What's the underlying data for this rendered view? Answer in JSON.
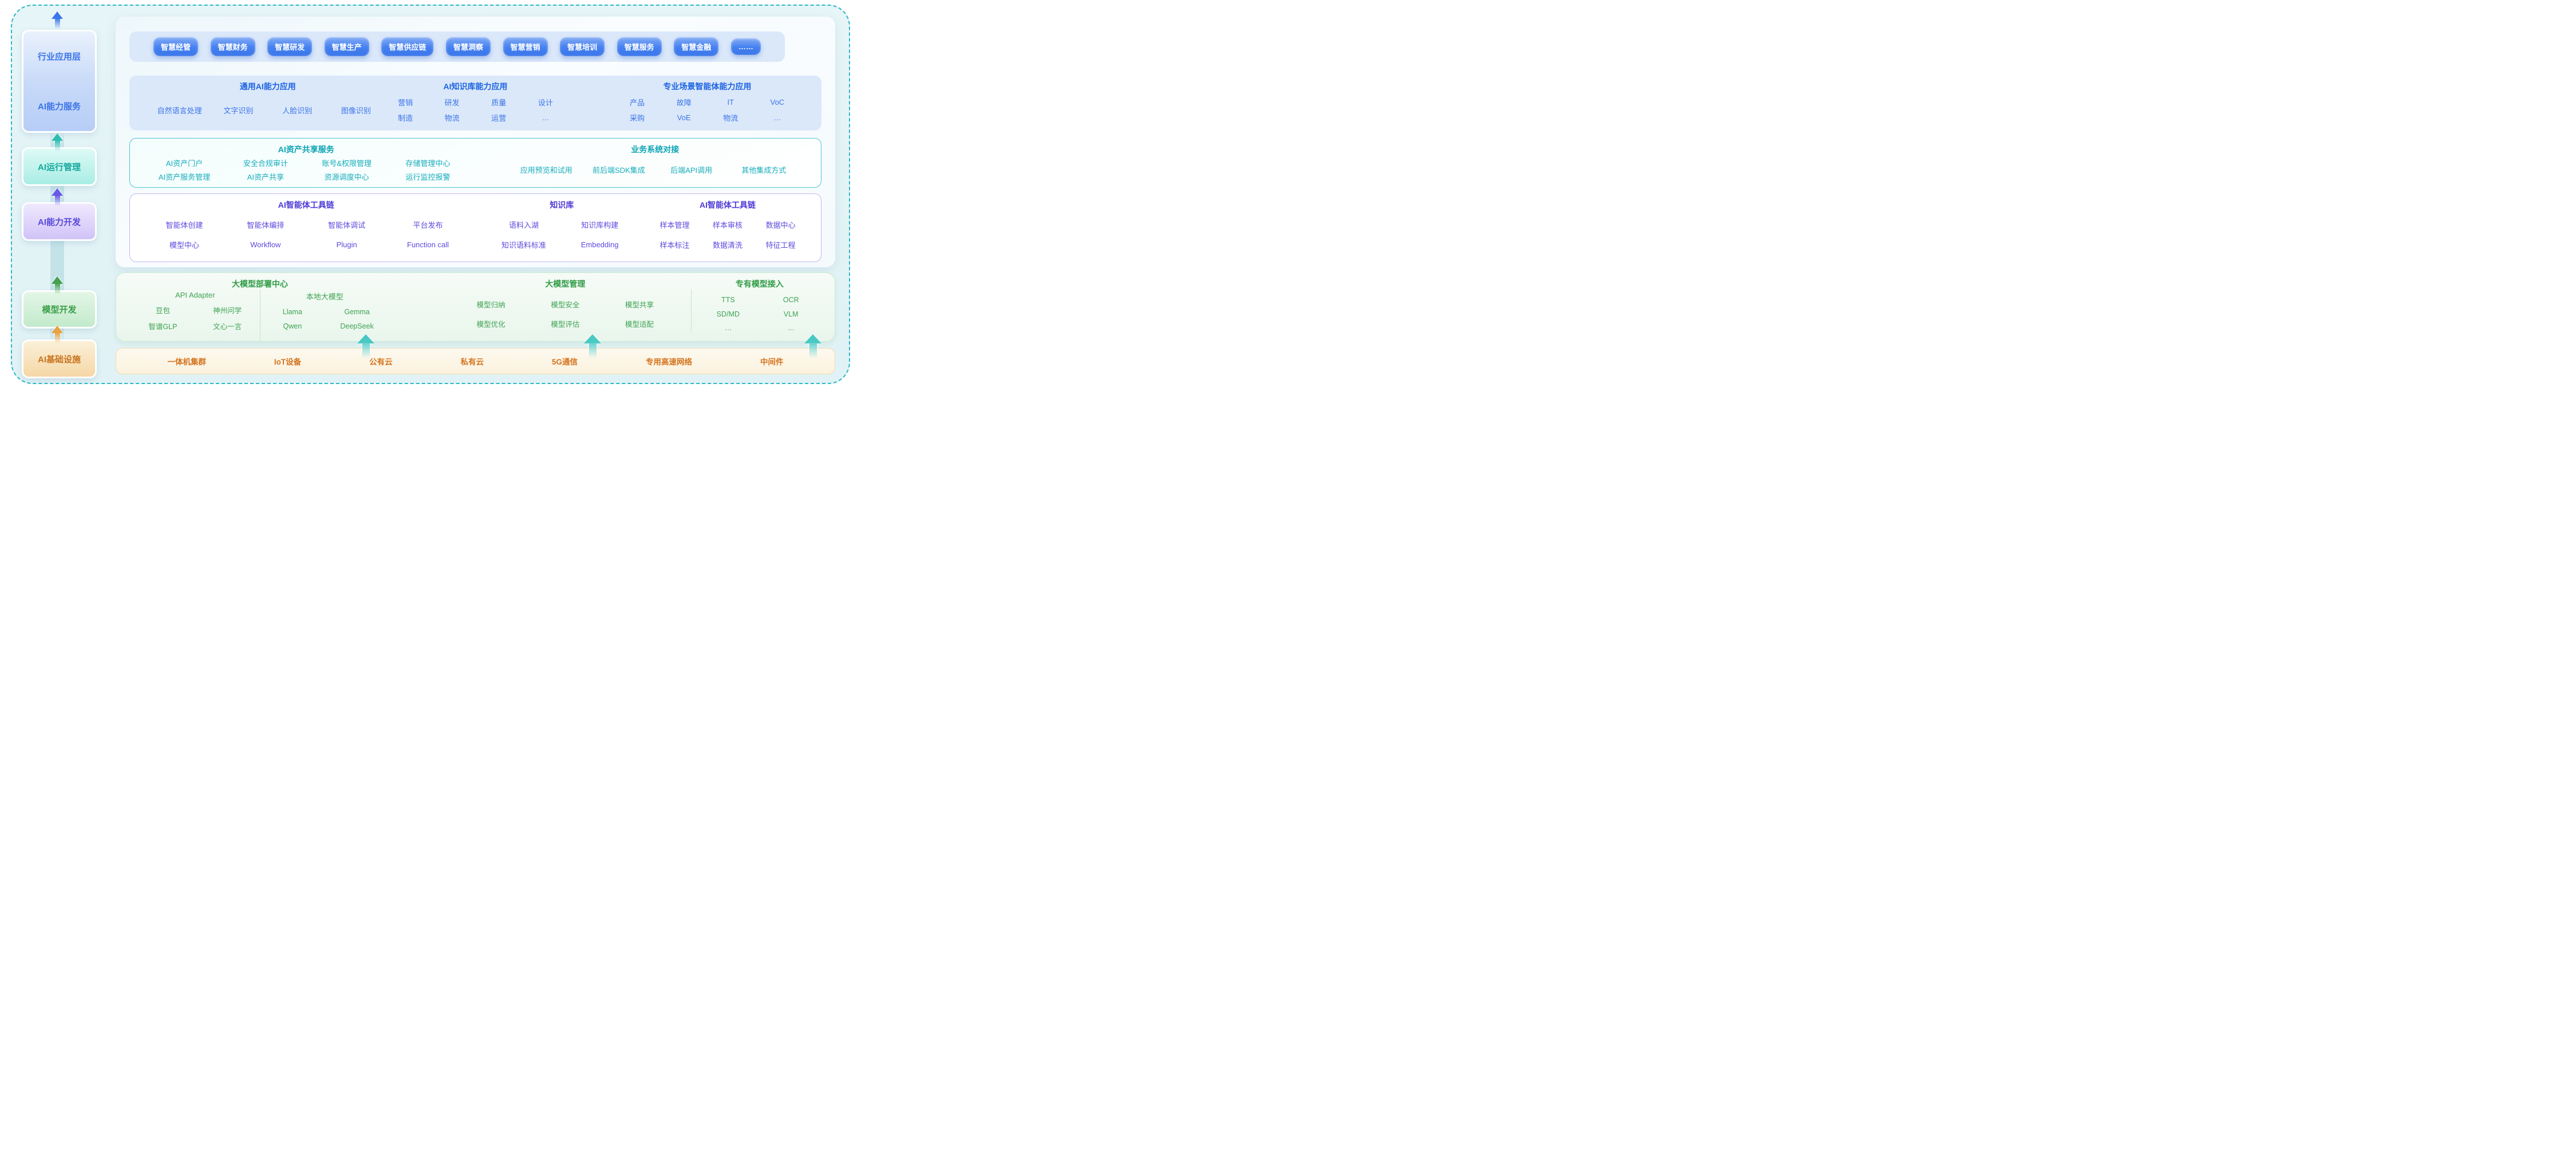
{
  "colors": {
    "board_background": "#e3f3f6",
    "dashed_border": "#2fb7c7",
    "blue_accent": "#3a74e8",
    "teal_accent": "#17acbb",
    "purple_accent": "#5c4ade",
    "green_accent": "#3fa352",
    "orange_accent": "#d4731c",
    "pill_blue": "#3b76ea"
  },
  "sidebar": {
    "layers": [
      {
        "labels": [
          "行业应用层",
          "AI能力服务"
        ]
      },
      {
        "labels": [
          "AI运行管理"
        ]
      },
      {
        "labels": [
          "AI能力开发"
        ]
      },
      {
        "labels": [
          "模型开发"
        ]
      },
      {
        "labels": [
          "AI基础设施"
        ]
      }
    ]
  },
  "apps": {
    "pills": [
      "智慧经管",
      "智慧财务",
      "智慧研发",
      "智慧生产",
      "智慧供应链",
      "智慧洞察",
      "智慧营销",
      "智慧培训",
      "智慧服务",
      "智慧金融",
      "……"
    ]
  },
  "capability": {
    "groups": [
      {
        "title": "通用AI能力应用",
        "rows": [
          [
            "自然语言处理",
            "文字识别",
            "人脸识别",
            "图像识别"
          ]
        ]
      },
      {
        "title": "AI知识库能力应用",
        "rows": [
          [
            "营销",
            "研发",
            "质量",
            "设计"
          ],
          [
            "制造",
            "物流",
            "运营",
            "…"
          ]
        ]
      },
      {
        "title": "专业场景智能体能力应用",
        "rows": [
          [
            "产品",
            "故障",
            "IT",
            "VoC"
          ],
          [
            "采购",
            "VoE",
            "物流",
            "…"
          ]
        ]
      }
    ]
  },
  "runtime": {
    "groups": [
      {
        "title": "AI资产共享服务",
        "rows": [
          [
            "AI资产门户",
            "安全合规审计",
            "账号&权限管理",
            "存储管理中心"
          ],
          [
            "AI资产服务管理",
            "AI资产共享",
            "资源调度中心",
            "运行监控报警"
          ]
        ]
      },
      {
        "title": "业务系统对接",
        "rows": [
          [
            "应用预览和试用",
            "前后端SDK集成",
            "后端API调用",
            "其他集成方式"
          ]
        ]
      }
    ]
  },
  "devtools": {
    "groups": [
      {
        "title": "AI智能体工具链",
        "rows": [
          [
            "智能体创建",
            "智能体编排",
            "智能体调试",
            "平台发布"
          ],
          [
            "模型中心",
            "Workflow",
            "Plugin",
            "Function call"
          ]
        ]
      },
      {
        "title": "知识库",
        "rows": [
          [
            "语料入湖",
            "知识库构建"
          ],
          [
            "知识语料标准",
            "Embedding"
          ]
        ]
      },
      {
        "title": "AI智能体工具链",
        "rows": [
          [
            "样本管理",
            "样本审核",
            "数据中心"
          ],
          [
            "样本标注",
            "数据清洗",
            "特征工程"
          ]
        ]
      }
    ]
  },
  "models": {
    "deploy": {
      "title": "大模型部署中心",
      "subgroups": [
        {
          "label": "API Adapter",
          "rows": [
            [
              "豆包",
              "神州问学"
            ],
            [
              "智谱GLP",
              "文心一言"
            ]
          ]
        },
        {
          "label": "本地大模型",
          "rows": [
            [
              "Llama",
              "Gemma"
            ],
            [
              "Qwen",
              "DeepSeek"
            ]
          ]
        }
      ]
    },
    "manage": {
      "title": "大模型管理",
      "rows": [
        [
          "模型归纳",
          "模型安全",
          "模型共享"
        ],
        [
          "模型优化",
          "模型评估",
          "模型适配"
        ]
      ]
    },
    "dedicated": {
      "title": "专有模型接入",
      "rows": [
        [
          "TTS",
          "OCR"
        ],
        [
          "SD/MD",
          "VLM"
        ],
        [
          "…",
          "…"
        ]
      ]
    }
  },
  "infra": {
    "items": [
      "一体机集群",
      "IoT设备",
      "公有云",
      "私有云",
      "5G通信",
      "专用高速网络",
      "中间件"
    ]
  }
}
